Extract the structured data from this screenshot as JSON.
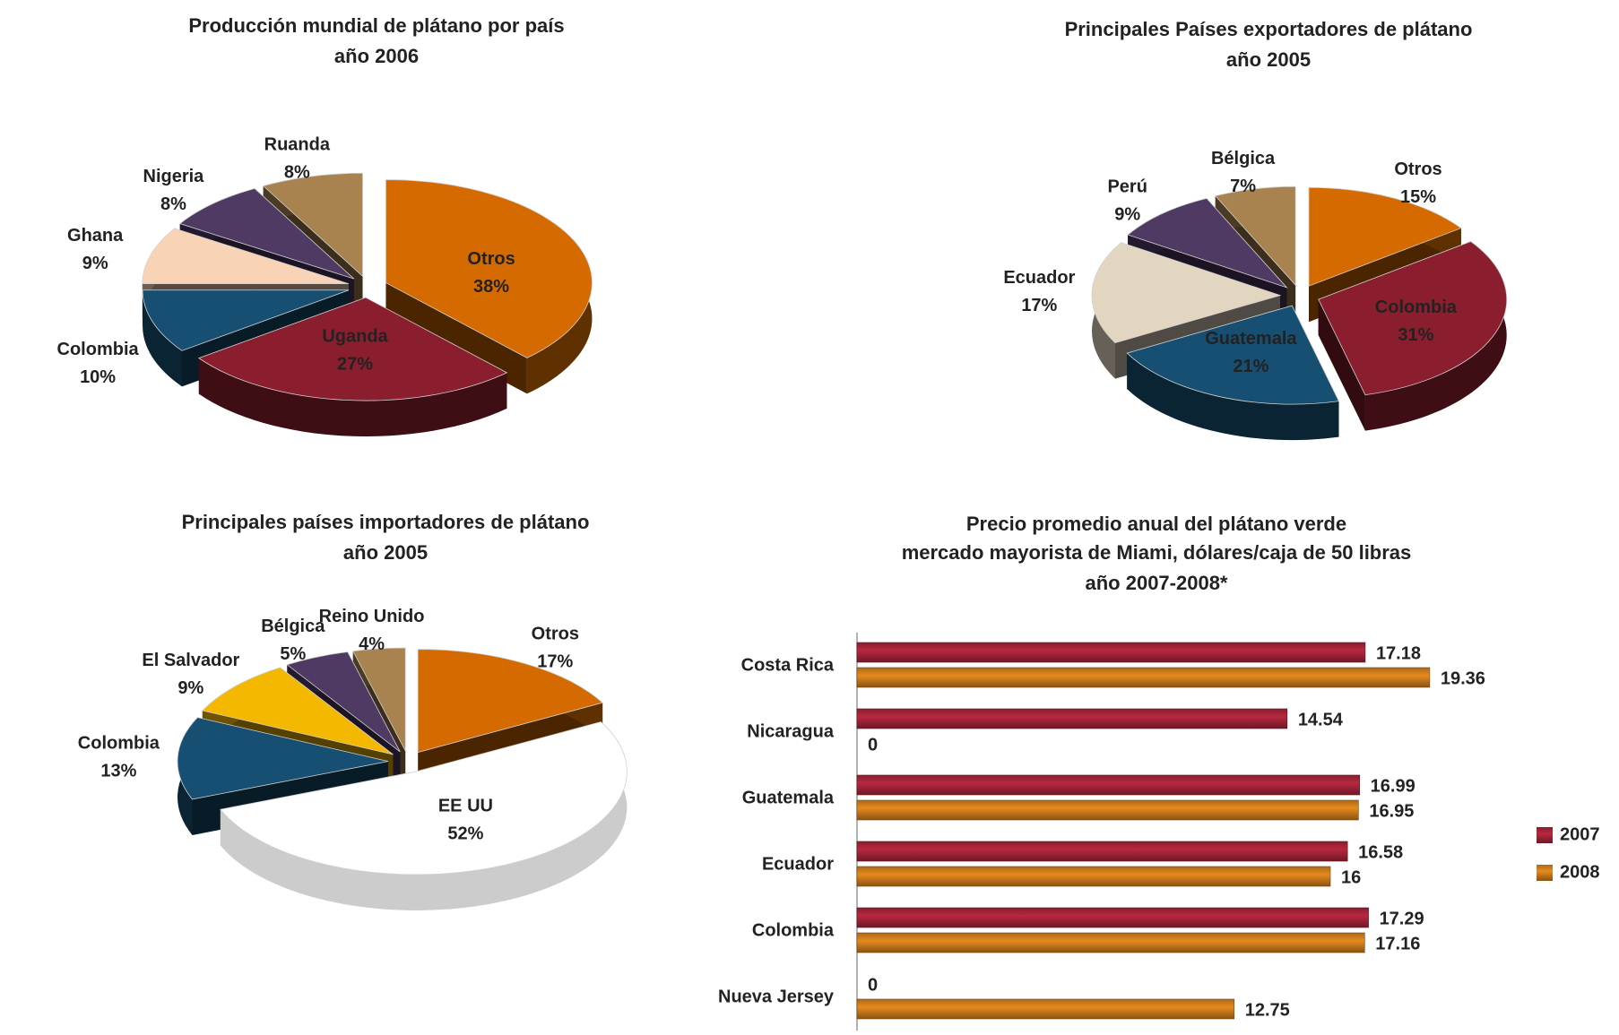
{
  "chart_data": [
    {
      "type": "pie",
      "title": "Producción mundial de plátano por país",
      "subtitle": "año 2006",
      "categories": [
        "Otros",
        "Uganda",
        "Colombia",
        "Ghana",
        "Nigeria",
        "Ruanda"
      ],
      "values": [
        38,
        27,
        10,
        9,
        8,
        8
      ],
      "value_labels": [
        "38%",
        "27%",
        "10%",
        "9%",
        "8%",
        "8%"
      ],
      "colors": [
        "#d46a00",
        "#8b1e2e",
        "#174f72",
        "#f9d3b5",
        "#4f3a63",
        "#a8834f"
      ]
    },
    {
      "type": "pie",
      "title": "Principales Países  exportadores de plátano",
      "subtitle": "año 2005",
      "categories": [
        "Otros",
        "Colombia",
        "Guatemala",
        "Ecuador",
        "Perú",
        "Bélgica"
      ],
      "values": [
        15,
        31,
        21,
        17,
        9,
        7
      ],
      "value_labels": [
        "15%",
        "31%",
        "21%",
        "17%",
        "9%",
        "7%"
      ],
      "colors": [
        "#d46a00",
        "#8b1e2e",
        "#174f72",
        "#e3d6c1",
        "#4f3a63",
        "#a8834f"
      ]
    },
    {
      "type": "pie",
      "title": "Principales países importadores de plátano",
      "subtitle": "año 2005",
      "categories": [
        "Otros",
        "EE UU",
        "Colombia",
        "El Salvador",
        "Bélgica",
        "Reino Unido"
      ],
      "values": [
        17,
        52,
        13,
        9,
        5,
        4
      ],
      "value_labels": [
        "17%",
        "52%",
        "13%",
        "9%",
        "5%",
        "4%"
      ],
      "colors": [
        "#d46a00",
        "#ffffff",
        "#174f72",
        "#f5b800",
        "#4f3a63",
        "#a8834f"
      ]
    },
    {
      "type": "hbar",
      "title": "Precio promedio anual del plátano verde",
      "subtitle": "mercado mayorista de Miami, dólares/caja de 50 libras",
      "note": "año 2007-2008*",
      "categories": [
        "Costa Rica",
        "Nicaragua",
        "Guatemala",
        "Ecuador",
        "Colombia",
        "Nueva Jersey"
      ],
      "series": [
        {
          "name": "2007",
          "color": "#b8283f",
          "values": [
            17.18,
            14.54,
            16.99,
            16.58,
            17.29,
            0
          ]
        },
        {
          "name": "2008",
          "color": "#e68a1f",
          "values": [
            19.36,
            0,
            16.95,
            16,
            17.16,
            12.75
          ]
        }
      ],
      "xlim": [
        0,
        20
      ],
      "legend": "right"
    }
  ]
}
